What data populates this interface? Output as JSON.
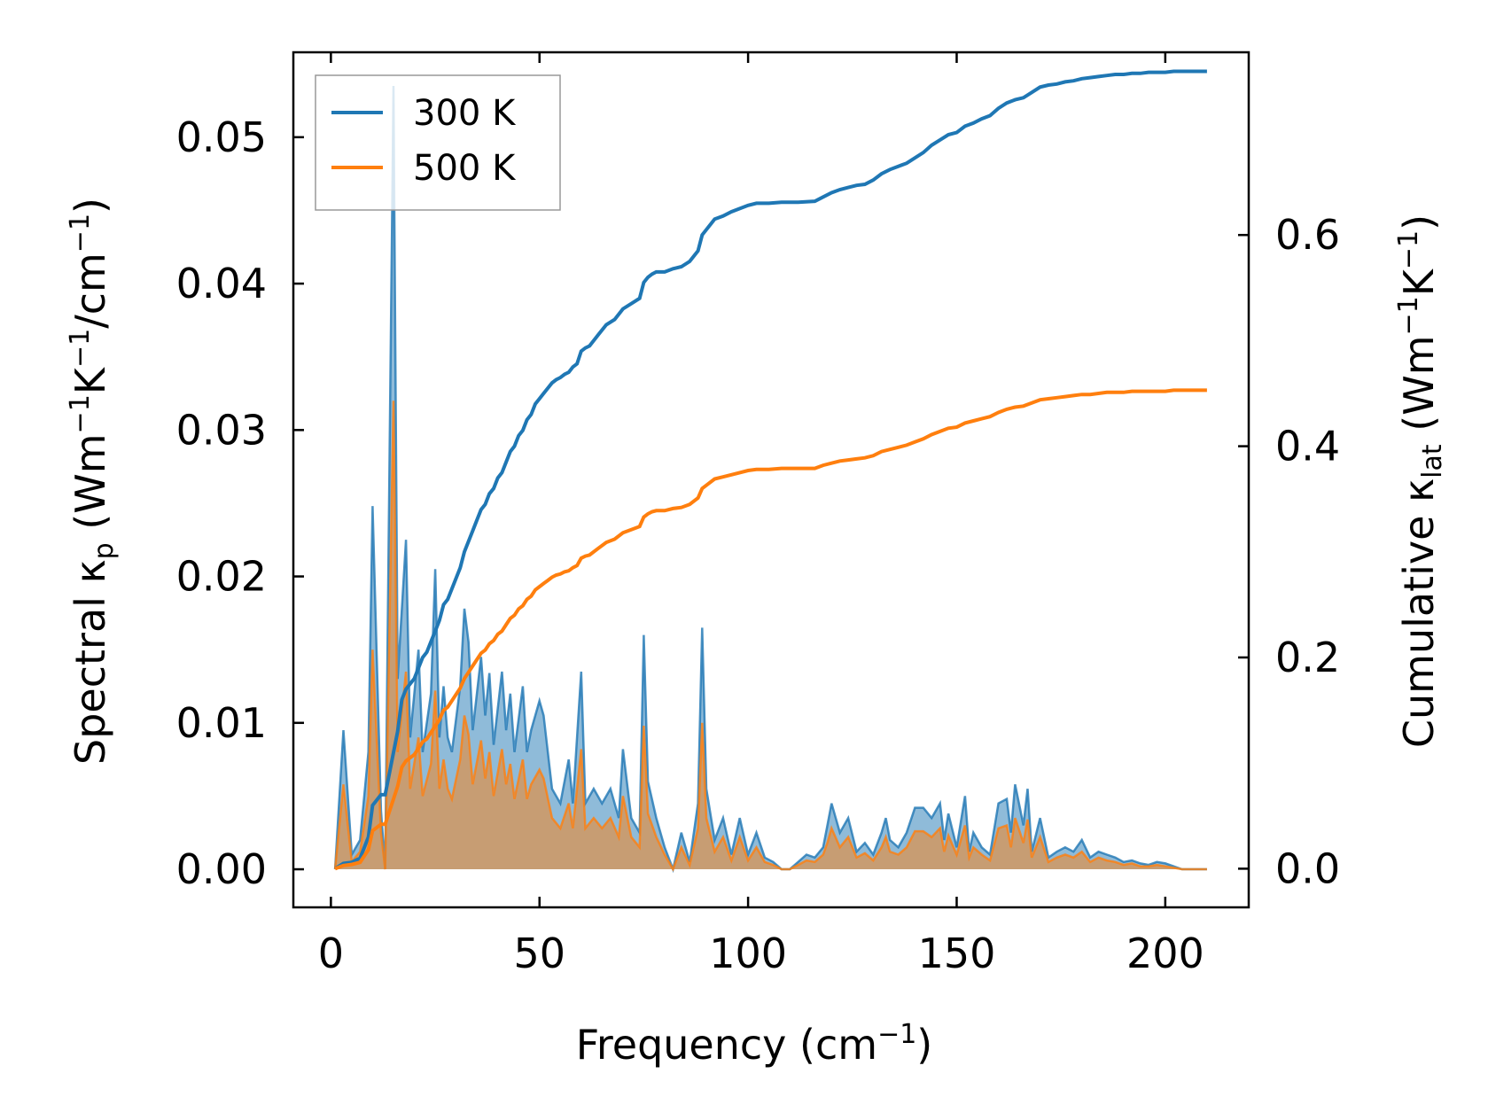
{
  "chart_data": {
    "type": "line",
    "xlabel": "Frequency (cm⁻¹)",
    "xlabel_parts": [
      "Frequency (cm",
      "−1",
      ")"
    ],
    "ylabel_left": "Spectral κₚ (Wm⁻¹K⁻¹/cm⁻¹)",
    "ylabel_left_parts": [
      "Spectral κ",
      "p",
      " (Wm",
      "−1",
      "K",
      "−1",
      "/cm",
      "−1",
      ")"
    ],
    "ylabel_right": "Cumulative κ_lat (Wm⁻¹K⁻¹)",
    "ylabel_right_parts": [
      "Cumulative κ",
      "lat",
      " (Wm",
      "−1",
      "K",
      "−1",
      ")"
    ],
    "xlim": [
      -9,
      220
    ],
    "ylim_left": [
      -0.0026,
      0.0558
    ],
    "ylim_right": [
      -0.0366,
      0.773
    ],
    "xticks": [
      0,
      50,
      100,
      150,
      200
    ],
    "xtick_labels": [
      "0",
      "50",
      "100",
      "150",
      "200"
    ],
    "yticks_left": [
      0.0,
      0.01,
      0.02,
      0.03,
      0.04,
      0.05
    ],
    "ytick_labels_left": [
      "0.00",
      "0.01",
      "0.02",
      "0.03",
      "0.04",
      "0.05"
    ],
    "yticks_right": [
      0.0,
      0.2,
      0.4,
      0.6
    ],
    "ytick_labels_right": [
      "0.0",
      "0.2",
      "0.4",
      "0.6"
    ],
    "legend": {
      "position": "top-left",
      "entries": [
        {
          "label": "300 K",
          "color": "#1f77b4"
        },
        {
          "label": "500 K",
          "color": "#ff7f0e"
        }
      ]
    },
    "colors": {
      "s300": "#1f77b4",
      "s500": "#ff7f0e"
    },
    "spectral_x": [
      1,
      3,
      5,
      7,
      9,
      10,
      12,
      13,
      15,
      16,
      18,
      19,
      21,
      22,
      24,
      25,
      26,
      27,
      28,
      29,
      31,
      32,
      33,
      34,
      36,
      37,
      38,
      39,
      41,
      42,
      43,
      44,
      46,
      47,
      48,
      50,
      51,
      53,
      55,
      57,
      58,
      60,
      61,
      63,
      65,
      67,
      69,
      70,
      72,
      74,
      75,
      76,
      78,
      80,
      82,
      84,
      86,
      88,
      89,
      90,
      92,
      94,
      96,
      98,
      100,
      102,
      104,
      106,
      108,
      110,
      112,
      114,
      116,
      118,
      119,
      120,
      122,
      124,
      126,
      128,
      130,
      132,
      133,
      134,
      136,
      138,
      140,
      142,
      144,
      146,
      147,
      148,
      150,
      152,
      153,
      154,
      156,
      158,
      160,
      162,
      163,
      164,
      166,
      167,
      168,
      170,
      172,
      174,
      176,
      178,
      180,
      182,
      184,
      186,
      188,
      190,
      192,
      194,
      196,
      198,
      200,
      202,
      204,
      206,
      208,
      210
    ],
    "spectral_300": [
      0.0,
      0.0095,
      0.001,
      0.002,
      0.008,
      0.0248,
      0.004,
      0.0,
      0.0535,
      0.013,
      0.0225,
      0.009,
      0.015,
      0.008,
      0.012,
      0.0205,
      0.009,
      0.0125,
      0.009,
      0.008,
      0.0125,
      0.0178,
      0.0155,
      0.0095,
      0.0145,
      0.0105,
      0.0134,
      0.0085,
      0.0135,
      0.0095,
      0.012,
      0.008,
      0.0125,
      0.008,
      0.0095,
      0.0115,
      0.0105,
      0.0055,
      0.0045,
      0.0075,
      0.0045,
      0.0135,
      0.0045,
      0.0055,
      0.0045,
      0.0055,
      0.0035,
      0.0082,
      0.0035,
      0.0025,
      0.016,
      0.006,
      0.0035,
      0.0015,
      0.0,
      0.0025,
      0.0005,
      0.0045,
      0.0165,
      0.0055,
      0.002,
      0.0035,
      0.001,
      0.0035,
      0.001,
      0.0025,
      0.0008,
      0.0005,
      0.0,
      0.0,
      0.0005,
      0.001,
      0.0008,
      0.0015,
      0.003,
      0.0045,
      0.0025,
      0.0035,
      0.0012,
      0.0018,
      0.001,
      0.0025,
      0.0035,
      0.002,
      0.0015,
      0.0025,
      0.0042,
      0.0042,
      0.0035,
      0.0045,
      0.002,
      0.0038,
      0.0015,
      0.005,
      0.0012,
      0.0025,
      0.0015,
      0.001,
      0.0045,
      0.0048,
      0.0025,
      0.0058,
      0.003,
      0.0055,
      0.0012,
      0.0035,
      0.0008,
      0.0012,
      0.0015,
      0.0012,
      0.002,
      0.0008,
      0.0012,
      0.001,
      0.0008,
      0.0005,
      0.0006,
      0.0004,
      0.0003,
      0.0005,
      0.0004,
      0.0002,
      0.0,
      0.0,
      0.0,
      0.0
    ],
    "spectral_500": [
      0.0,
      0.0058,
      0.0005,
      0.0012,
      0.005,
      0.015,
      0.0025,
      0.0,
      0.032,
      0.008,
      0.0135,
      0.0055,
      0.009,
      0.005,
      0.0072,
      0.0122,
      0.0055,
      0.0075,
      0.0055,
      0.0048,
      0.0075,
      0.0105,
      0.0092,
      0.0058,
      0.0088,
      0.0062,
      0.008,
      0.005,
      0.0082,
      0.0058,
      0.0072,
      0.0048,
      0.0075,
      0.0048,
      0.0058,
      0.0068,
      0.0062,
      0.0035,
      0.0028,
      0.0045,
      0.0028,
      0.0082,
      0.0028,
      0.0035,
      0.0028,
      0.0035,
      0.0022,
      0.005,
      0.0022,
      0.0015,
      0.0098,
      0.0038,
      0.0022,
      0.001,
      0.0,
      0.0015,
      0.0003,
      0.0028,
      0.01,
      0.0035,
      0.0012,
      0.0022,
      0.0006,
      0.0022,
      0.0006,
      0.0015,
      0.0005,
      0.0003,
      0.0,
      0.0,
      0.0003,
      0.0006,
      0.0005,
      0.001,
      0.0018,
      0.0028,
      0.0015,
      0.0022,
      0.0008,
      0.0011,
      0.0006,
      0.0015,
      0.0022,
      0.0012,
      0.001,
      0.0015,
      0.0026,
      0.0026,
      0.0022,
      0.0028,
      0.0012,
      0.0023,
      0.001,
      0.003,
      0.0008,
      0.0015,
      0.001,
      0.0006,
      0.0028,
      0.003,
      0.0015,
      0.0035,
      0.0018,
      0.0034,
      0.0008,
      0.0022,
      0.0005,
      0.0008,
      0.001,
      0.0008,
      0.0012,
      0.0005,
      0.0008,
      0.0006,
      0.0005,
      0.0003,
      0.0004,
      0.0002,
      0.0002,
      0.0003,
      0.0002,
      0.0001,
      0.0,
      0.0,
      0.0,
      0.0
    ],
    "cumulative_x": [
      1,
      3,
      5,
      7,
      9,
      10,
      12,
      13,
      15,
      16,
      17,
      18,
      19,
      20,
      21,
      22,
      23,
      24,
      25,
      26,
      27,
      28,
      29,
      30,
      31,
      32,
      33,
      34,
      35,
      36,
      37,
      38,
      39,
      40,
      41,
      42,
      43,
      44,
      45,
      46,
      47,
      48,
      49,
      50,
      51,
      52,
      53,
      54,
      55,
      56,
      57,
      58,
      59,
      60,
      61,
      62,
      64,
      66,
      68,
      70,
      72,
      74,
      75,
      76,
      77,
      78,
      80,
      82,
      84,
      86,
      88,
      89,
      90,
      92,
      94,
      96,
      98,
      100,
      102,
      105,
      108,
      112,
      116,
      118,
      120,
      122,
      124,
      126,
      128,
      130,
      132,
      134,
      136,
      138,
      140,
      142,
      144,
      146,
      148,
      150,
      152,
      154,
      156,
      158,
      160,
      162,
      164,
      166,
      168,
      170,
      172,
      174,
      176,
      178,
      180,
      182,
      184,
      186,
      188,
      190,
      192,
      194,
      196,
      198,
      200,
      202,
      204,
      206,
      208,
      210
    ],
    "cumulative_300": [
      0.0,
      0.005,
      0.006,
      0.01,
      0.03,
      0.06,
      0.07,
      0.07,
      0.11,
      0.13,
      0.16,
      0.17,
      0.175,
      0.18,
      0.19,
      0.2,
      0.205,
      0.215,
      0.225,
      0.235,
      0.25,
      0.255,
      0.265,
      0.275,
      0.285,
      0.3,
      0.31,
      0.32,
      0.33,
      0.34,
      0.345,
      0.355,
      0.36,
      0.37,
      0.375,
      0.385,
      0.395,
      0.4,
      0.41,
      0.415,
      0.425,
      0.43,
      0.44,
      0.445,
      0.45,
      0.455,
      0.46,
      0.463,
      0.465,
      0.468,
      0.47,
      0.475,
      0.478,
      0.49,
      0.493,
      0.495,
      0.505,
      0.515,
      0.52,
      0.53,
      0.535,
      0.54,
      0.555,
      0.56,
      0.563,
      0.565,
      0.565,
      0.568,
      0.57,
      0.575,
      0.585,
      0.6,
      0.605,
      0.615,
      0.618,
      0.622,
      0.625,
      0.628,
      0.63,
      0.63,
      0.631,
      0.631,
      0.632,
      0.636,
      0.64,
      0.643,
      0.645,
      0.647,
      0.648,
      0.652,
      0.658,
      0.662,
      0.665,
      0.668,
      0.673,
      0.678,
      0.685,
      0.69,
      0.695,
      0.697,
      0.703,
      0.706,
      0.71,
      0.713,
      0.72,
      0.725,
      0.728,
      0.73,
      0.735,
      0.74,
      0.742,
      0.743,
      0.745,
      0.746,
      0.748,
      0.749,
      0.75,
      0.751,
      0.752,
      0.752,
      0.753,
      0.753,
      0.754,
      0.754,
      0.754,
      0.755,
      0.755,
      0.755,
      0.755,
      0.755
    ],
    "cumulative_500": [
      0.0,
      0.003,
      0.004,
      0.006,
      0.018,
      0.036,
      0.042,
      0.042,
      0.066,
      0.078,
      0.096,
      0.102,
      0.105,
      0.108,
      0.114,
      0.12,
      0.123,
      0.129,
      0.135,
      0.141,
      0.15,
      0.153,
      0.159,
      0.165,
      0.171,
      0.18,
      0.186,
      0.192,
      0.198,
      0.204,
      0.207,
      0.213,
      0.216,
      0.222,
      0.225,
      0.231,
      0.237,
      0.24,
      0.246,
      0.249,
      0.255,
      0.258,
      0.264,
      0.267,
      0.27,
      0.273,
      0.276,
      0.278,
      0.279,
      0.281,
      0.282,
      0.285,
      0.287,
      0.294,
      0.296,
      0.297,
      0.303,
      0.309,
      0.312,
      0.318,
      0.321,
      0.324,
      0.333,
      0.336,
      0.338,
      0.339,
      0.339,
      0.341,
      0.342,
      0.345,
      0.351,
      0.36,
      0.363,
      0.369,
      0.371,
      0.373,
      0.375,
      0.377,
      0.378,
      0.378,
      0.379,
      0.379,
      0.379,
      0.382,
      0.384,
      0.386,
      0.387,
      0.388,
      0.389,
      0.391,
      0.395,
      0.397,
      0.399,
      0.401,
      0.404,
      0.407,
      0.411,
      0.414,
      0.417,
      0.418,
      0.422,
      0.424,
      0.426,
      0.428,
      0.432,
      0.435,
      0.437,
      0.438,
      0.441,
      0.444,
      0.445,
      0.446,
      0.447,
      0.448,
      0.449,
      0.449,
      0.45,
      0.451,
      0.451,
      0.451,
      0.452,
      0.452,
      0.452,
      0.452,
      0.452,
      0.453,
      0.453,
      0.453,
      0.453,
      0.453
    ]
  }
}
